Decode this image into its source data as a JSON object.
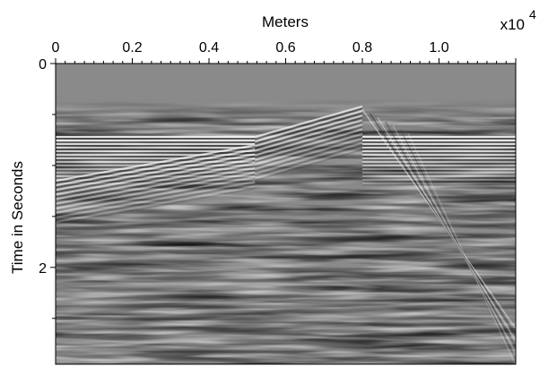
{
  "chart_data": {
    "type": "heatmap",
    "title": "",
    "xlabel": "Meters",
    "ylabel": "Time in Seconds",
    "x_multiplier": "x10",
    "x_multiplier_exponent": "4",
    "x_axis_position": "top",
    "xlim": [
      0,
      1.2
    ],
    "ylim": [
      0,
      2.95
    ],
    "y_inverted": true,
    "x_ticks": [
      {
        "value": 0,
        "label": "0"
      },
      {
        "value": 0.2,
        "label": "0.2"
      },
      {
        "value": 0.4,
        "label": "0.4"
      },
      {
        "value": 0.6,
        "label": "0.6"
      },
      {
        "value": 0.8,
        "label": "0.8"
      },
      {
        "value": 1.0,
        "label": "1.0"
      }
    ],
    "y_ticks": [
      {
        "value": 0,
        "label": "0"
      },
      {
        "value": 2,
        "label": "2"
      }
    ],
    "colormap": "grayscale",
    "background_color": "#8a8a8a",
    "grid": false,
    "features": [
      {
        "kind": "flat_reflector",
        "x": [
          0.0,
          0.52
        ],
        "t": 0.72
      },
      {
        "kind": "dipping_reflector",
        "x": [
          0.52,
          0.8
        ],
        "t": [
          0.72,
          0.42
        ]
      },
      {
        "kind": "flat_reflector",
        "x": [
          0.8,
          1.2
        ],
        "t": 0.72
      },
      {
        "kind": "dipping_reflector",
        "x": [
          0.0,
          0.52
        ],
        "t": [
          1.15,
          0.8
        ]
      },
      {
        "kind": "diffraction_flank",
        "x": [
          0.8,
          1.2
        ],
        "t": [
          0.45,
          2.6
        ]
      }
    ]
  }
}
